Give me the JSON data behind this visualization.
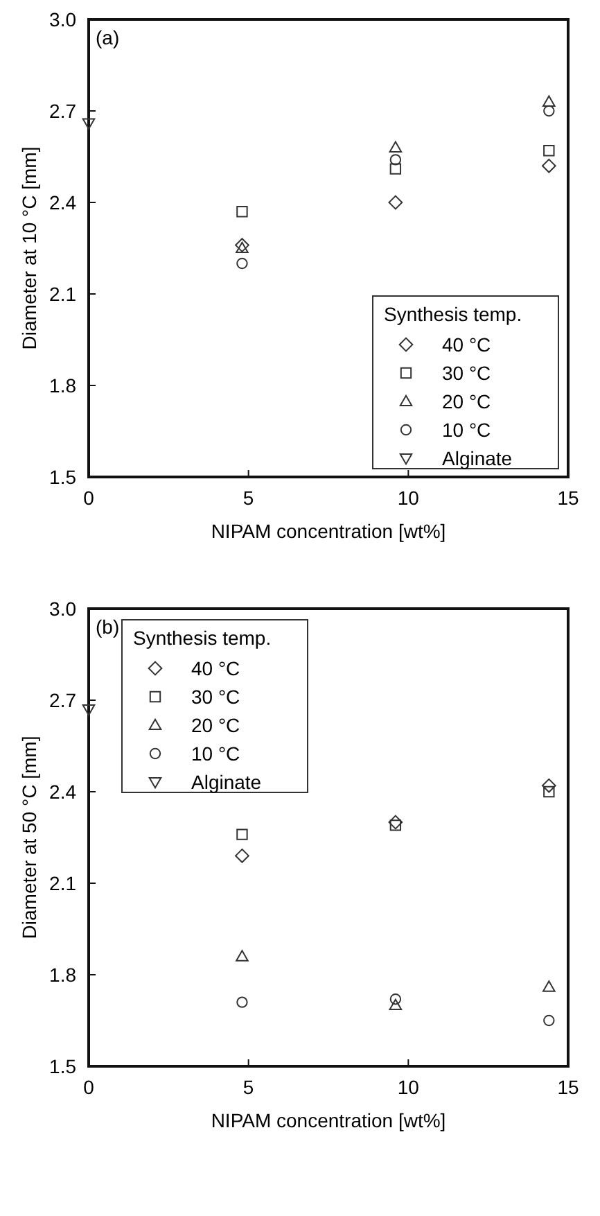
{
  "chart_data": [
    {
      "type": "scatter",
      "xlabel": "NIPAM concentration [wt%]",
      "ylabel": "Diameter at 10 °C [mm]",
      "legend_title": "Synthesis temp.",
      "legend": "bottom right",
      "annotations": [
        "(a)"
      ],
      "xlim": [
        0,
        15
      ],
      "xticks": [
        0,
        5,
        10,
        15
      ],
      "ylim": [
        1.5,
        3.0
      ],
      "yticks": [
        {
          "value": 1.5,
          "label": "1.5"
        },
        {
          "value": 1.8,
          "label": "1.8"
        },
        {
          "value": 2.1,
          "label": "2.1"
        },
        {
          "value": 2.4,
          "label": "2.4"
        },
        {
          "value": 2.7,
          "label": "2.7"
        },
        {
          "value": 3.0,
          "label": "3.0"
        }
      ],
      "grid": false,
      "series": [
        {
          "name": "40 °C",
          "color": "#333333",
          "marker": "diamond",
          "x": [
            4.8,
            9.6,
            14.4
          ],
          "values": [
            2.26,
            2.4,
            2.52
          ]
        },
        {
          "name": "30 °C",
          "color": "#333333",
          "marker": "square",
          "x": [
            4.8,
            9.6,
            14.4
          ],
          "values": [
            2.37,
            2.51,
            2.57
          ]
        },
        {
          "name": "20 °C",
          "color": "#333333",
          "marker": "triangle",
          "x": [
            4.8,
            9.6,
            14.4
          ],
          "values": [
            2.25,
            2.58,
            2.73
          ]
        },
        {
          "name": "10 °C",
          "color": "#333333",
          "marker": "circle",
          "x": [
            4.8,
            9.6,
            14.4
          ],
          "values": [
            2.2,
            2.54,
            2.7
          ]
        },
        {
          "name": "Alginate",
          "color": "#333333",
          "marker": "triangle-down",
          "x": [
            0
          ],
          "values": [
            2.66
          ]
        }
      ]
    },
    {
      "type": "scatter",
      "xlabel": "NIPAM concentration [wt%]",
      "ylabel": "Diameter at 50 °C [mm]",
      "legend_title": "Synthesis temp.",
      "legend": "top left",
      "annotations": [
        "(b)"
      ],
      "xlim": [
        0,
        15
      ],
      "xticks": [
        0,
        5,
        10,
        15
      ],
      "ylim": [
        1.5,
        3.0
      ],
      "yticks": [
        {
          "value": 1.5,
          "label": "1.5"
        },
        {
          "value": 1.8,
          "label": "1.8"
        },
        {
          "value": 2.1,
          "label": "2.1"
        },
        {
          "value": 2.4,
          "label": "2.4"
        },
        {
          "value": 2.7,
          "label": "2.7"
        },
        {
          "value": 3.0,
          "label": "3.0"
        }
      ],
      "grid": false,
      "series": [
        {
          "name": "40 °C",
          "color": "#333333",
          "marker": "diamond",
          "x": [
            4.8,
            9.6,
            14.4
          ],
          "values": [
            2.19,
            2.3,
            2.42
          ]
        },
        {
          "name": "30 °C",
          "color": "#333333",
          "marker": "square",
          "x": [
            4.8,
            9.6,
            14.4
          ],
          "values": [
            2.26,
            2.29,
            2.4
          ]
        },
        {
          "name": "20 °C",
          "color": "#333333",
          "marker": "triangle",
          "x": [
            4.8,
            9.6,
            14.4
          ],
          "values": [
            1.86,
            1.7,
            1.76
          ]
        },
        {
          "name": "10 °C",
          "color": "#333333",
          "marker": "circle",
          "x": [
            4.8,
            9.6,
            14.4
          ],
          "values": [
            1.71,
            1.72,
            1.65
          ]
        },
        {
          "name": "Alginate",
          "color": "#333333",
          "marker": "triangle-down",
          "x": [
            0
          ],
          "values": [
            2.67
          ]
        }
      ]
    }
  ]
}
